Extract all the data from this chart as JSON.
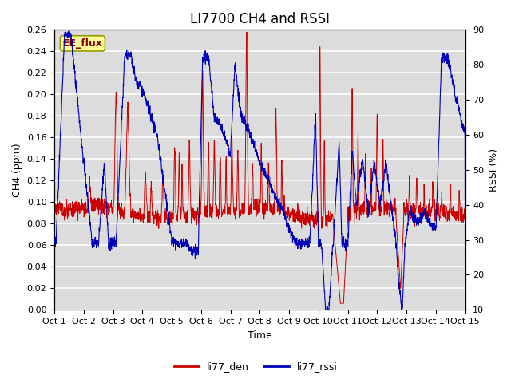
{
  "title": "LI7700 CH4 and RSSI",
  "xlabel": "Time",
  "ylabel_left": "CH4 (ppm)",
  "ylabel_right": "RSSI (%)",
  "xlim": [
    0,
    14
  ],
  "ylim_left": [
    0.0,
    0.26
  ],
  "ylim_right": [
    10,
    90
  ],
  "yticks_left": [
    0.0,
    0.02,
    0.04,
    0.06,
    0.08,
    0.1,
    0.12,
    0.14,
    0.16,
    0.18,
    0.2,
    0.22,
    0.24,
    0.26
  ],
  "yticks_right": [
    10,
    20,
    30,
    40,
    50,
    60,
    70,
    80,
    90
  ],
  "xtick_labels": [
    "Oct 1",
    "Oct 2",
    "Oct 3",
    "Oct 4",
    "Oct 5",
    "Oct 6",
    "Oct 7",
    "Oct 8",
    "Oct 9",
    "Oct 10",
    "Oct 11",
    "Oct 12",
    "Oct 13",
    "Oct 14",
    "Oct 15"
  ],
  "color_red": "#cc0000",
  "color_blue": "#0000bb",
  "bg_color": "#dcdcdc",
  "annotation_text": "EE_flux",
  "annotation_bg": "#ffff99",
  "annotation_border": "#999900",
  "legend_labels": [
    "li77_den",
    "li77_rssi"
  ],
  "title_fontsize": 12,
  "label_fontsize": 9,
  "tick_fontsize": 8
}
